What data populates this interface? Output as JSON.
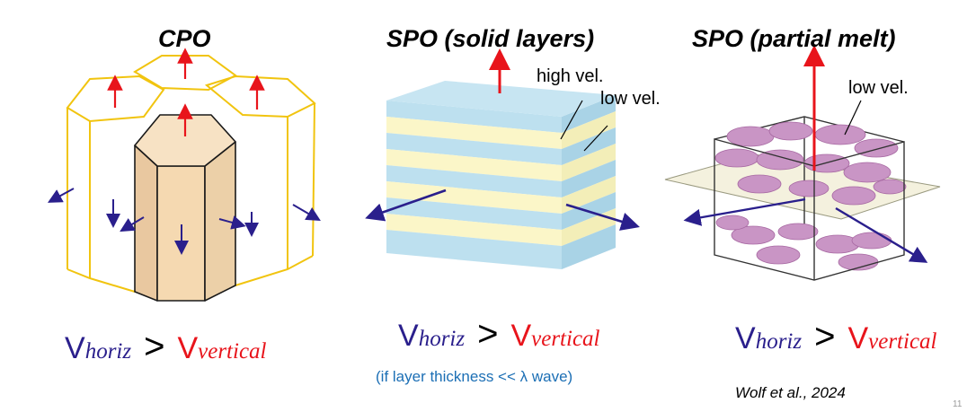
{
  "panels": [
    {
      "title": "CPO",
      "formula": {
        "v": "V",
        "horiz_sub": "horiz",
        "gt": ">",
        "vertical_sub": "vertical"
      }
    },
    {
      "title": "SPO (solid layers)",
      "labels": {
        "high": "high vel.",
        "low": "low vel."
      },
      "formula": {
        "v": "V",
        "horiz_sub": "horiz",
        "gt": ">",
        "vertical_sub": "vertical"
      },
      "note": "(if layer thickness << λ wave)"
    },
    {
      "title": "SPO (partial melt)",
      "labels": {
        "low": "low vel."
      },
      "formula": {
        "v": "V",
        "horiz_sub": "horiz",
        "gt": ">",
        "vertical_sub": "vertical"
      },
      "citation": "Wolf et al., 2024"
    }
  ],
  "page_number": "11",
  "colors": {
    "vertical_arrow": "#e8141b",
    "horizontal_arrow": "#2a1f8c",
    "crystal_outline": "#f1c40f",
    "crystal_fill": "#f5d9b1",
    "layer_blue": "#bde0ef",
    "layer_yellow": "#fbf6c8",
    "melt_pocket": "#c995c5",
    "plane_fill": "#f2eed8"
  }
}
